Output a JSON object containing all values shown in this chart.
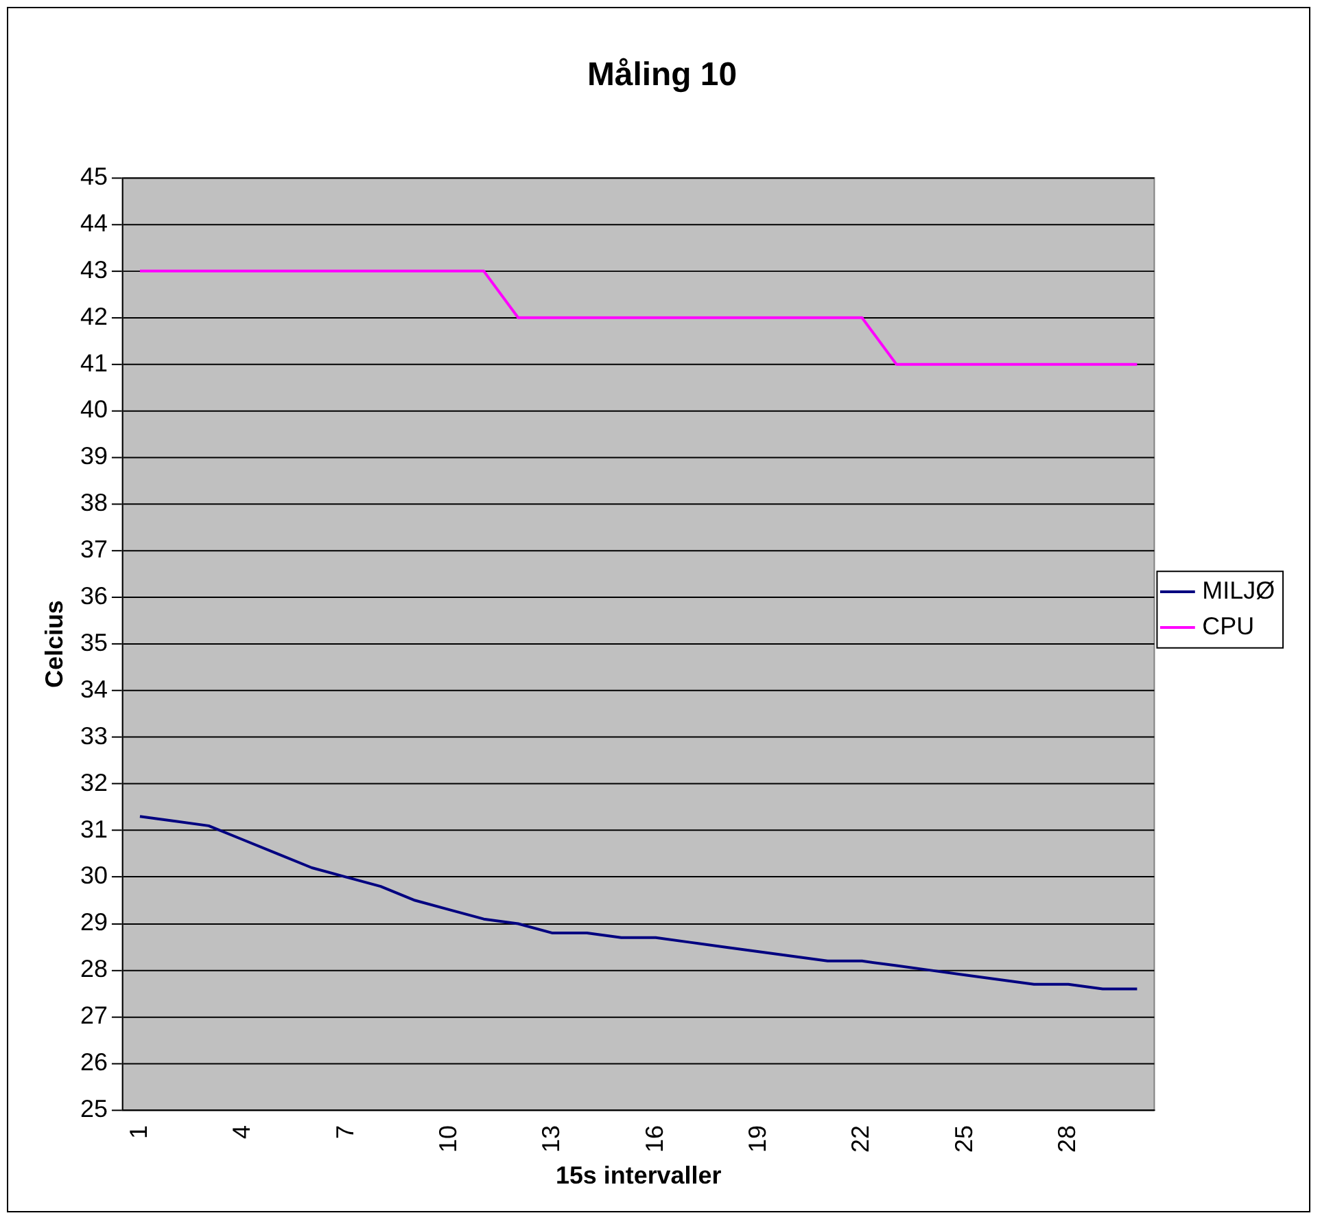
{
  "chart_data": {
    "type": "line",
    "title": "Måling 10",
    "xlabel": "15s intervaller",
    "ylabel": "Celcius",
    "categories": [
      "1",
      null,
      null,
      "4",
      null,
      null,
      "7",
      null,
      null,
      "10",
      null,
      null,
      "13",
      null,
      null,
      "16",
      null,
      null,
      "19",
      null,
      null,
      "22",
      null,
      null,
      "25",
      null,
      null,
      "28",
      null,
      null
    ],
    "series": [
      {
        "name": "MILJØ",
        "color": "#000080",
        "values": [
          31.3,
          31.2,
          31.1,
          30.8,
          30.5,
          30.2,
          30.0,
          29.8,
          29.5,
          29.3,
          29.1,
          29.0,
          28.8,
          28.8,
          28.7,
          28.7,
          28.6,
          28.5,
          28.4,
          28.3,
          28.2,
          28.2,
          28.1,
          28.0,
          27.9,
          27.8,
          27.7,
          27.7,
          27.6,
          27.6
        ]
      },
      {
        "name": "CPU",
        "color": "#ff00ff",
        "values": [
          43,
          43,
          43,
          43,
          43,
          43,
          43,
          43,
          43,
          43,
          43,
          42,
          42,
          42,
          42,
          42,
          42,
          42,
          42,
          42,
          42,
          42,
          41,
          41,
          41,
          41,
          41,
          41,
          41,
          41
        ]
      }
    ],
    "ylim": [
      25,
      45
    ],
    "yticks": [
      25,
      26,
      27,
      28,
      29,
      30,
      31,
      32,
      33,
      34,
      35,
      36,
      37,
      38,
      39,
      40,
      41,
      42,
      43,
      44,
      45
    ],
    "grid": "y",
    "legend": "right",
    "marker": "none",
    "line_style": "solid"
  }
}
